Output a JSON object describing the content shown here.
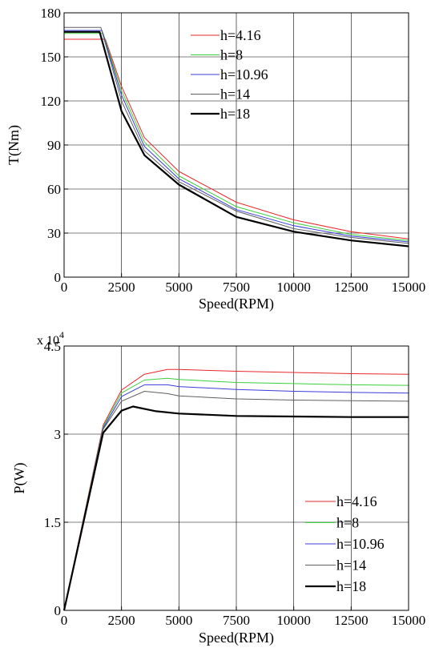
{
  "chart_data": [
    {
      "type": "line",
      "xlabel": "Speed(RPM)",
      "ylabel": "T(Nm)",
      "xlim": [
        0,
        15000
      ],
      "ylim": [
        0,
        180
      ],
      "xticks": [
        "0",
        "2500",
        "5000",
        "7500",
        "10000",
        "12500",
        "15000"
      ],
      "xtick_values": [
        0,
        2500,
        5000,
        7500,
        10000,
        12500,
        15000
      ],
      "yticks": [
        "0",
        "30",
        "60",
        "90",
        "120",
        "150",
        "180"
      ],
      "ytick_values": [
        0,
        30,
        60,
        90,
        120,
        150,
        180
      ],
      "grid": true,
      "legend_position": "top-center",
      "series": [
        {
          "name": "h=4.16",
          "color": "#e8262a",
          "width": 1,
          "x": [
            0,
            1800,
            2500,
            3500,
            5000,
            7500,
            10000,
            12500,
            15000
          ],
          "y": [
            162,
            162,
            130,
            95,
            72,
            51,
            39,
            31,
            26
          ]
        },
        {
          "name": "h=8",
          "color": "#3ccf3c",
          "width": 1,
          "x": [
            0,
            1700,
            2500,
            3500,
            5000,
            7500,
            10000,
            12500,
            15000
          ],
          "y": [
            166,
            166,
            127,
            92,
            69,
            48,
            37,
            29,
            25
          ]
        },
        {
          "name": "h=10.96",
          "color": "#3b3bd9",
          "width": 1,
          "x": [
            0,
            1650,
            2500,
            3500,
            5000,
            7500,
            10000,
            12500,
            15000
          ],
          "y": [
            168,
            168,
            124,
            89,
            67,
            46,
            35,
            28,
            24
          ]
        },
        {
          "name": "h=14",
          "color": "#5f5f5f",
          "width": 1,
          "x": [
            0,
            1600,
            2500,
            3500,
            5000,
            7500,
            10000,
            12500,
            15000
          ],
          "y": [
            170,
            170,
            120,
            86,
            65,
            45,
            33,
            27,
            23
          ]
        },
        {
          "name": "h=18",
          "color": "#000000",
          "width": 2.2,
          "x": [
            0,
            1550,
            2500,
            3500,
            5000,
            7500,
            10000,
            12500,
            15000
          ],
          "y": [
            167,
            167,
            113,
            83,
            63,
            41,
            31,
            25,
            21
          ]
        }
      ]
    },
    {
      "type": "line",
      "xlabel": "Speed(RPM)",
      "ylabel": "P(W)",
      "exponent_label": "x 10",
      "exponent_power": "4",
      "xlim": [
        0,
        15000
      ],
      "ylim": [
        0,
        4.5
      ],
      "xticks": [
        "0",
        "2500",
        "5000",
        "7500",
        "10000",
        "12500",
        "15000"
      ],
      "xtick_values": [
        0,
        2500,
        5000,
        7500,
        10000,
        12500,
        15000
      ],
      "yticks": [
        "0",
        "1.5",
        "3",
        "4.5"
      ],
      "ytick_values": [
        0,
        1.5,
        3,
        4.5
      ],
      "grid": true,
      "legend_position": "bottom-right",
      "series": [
        {
          "name": "h=4.16",
          "color": "#e8262a",
          "width": 1,
          "x": [
            0,
            1700,
            2500,
            3500,
            4500,
            5000,
            7500,
            10000,
            12500,
            15000
          ],
          "y": [
            0,
            3.15,
            3.75,
            4.02,
            4.1,
            4.1,
            4.07,
            4.05,
            4.03,
            4.02
          ]
        },
        {
          "name": "h=8",
          "color": "#3ccf3c",
          "width": 1,
          "x": [
            0,
            1700,
            2500,
            3500,
            4500,
            5000,
            7500,
            10000,
            12500,
            15000
          ],
          "y": [
            0,
            3.12,
            3.7,
            3.92,
            3.95,
            3.93,
            3.88,
            3.86,
            3.84,
            3.83
          ]
        },
        {
          "name": "h=10.96",
          "color": "#3b3bd9",
          "width": 1,
          "x": [
            0,
            1700,
            2500,
            3500,
            4500,
            5000,
            7500,
            10000,
            12500,
            15000
          ],
          "y": [
            0,
            3.1,
            3.64,
            3.84,
            3.84,
            3.81,
            3.76,
            3.73,
            3.71,
            3.7
          ]
        },
        {
          "name": "h=14",
          "color": "#5f5f5f",
          "width": 1,
          "x": [
            0,
            1700,
            2500,
            3500,
            4500,
            5000,
            7500,
            10000,
            12500,
            15000
          ],
          "y": [
            0,
            3.08,
            3.56,
            3.73,
            3.69,
            3.65,
            3.6,
            3.58,
            3.57,
            3.56
          ]
        },
        {
          "name": "h=18",
          "color": "#000000",
          "width": 2.2,
          "x": [
            0,
            1700,
            2500,
            3000,
            4000,
            5000,
            7500,
            10000,
            12500,
            15000
          ],
          "y": [
            0,
            3.02,
            3.4,
            3.47,
            3.39,
            3.35,
            3.31,
            3.3,
            3.29,
            3.29
          ]
        }
      ]
    }
  ]
}
